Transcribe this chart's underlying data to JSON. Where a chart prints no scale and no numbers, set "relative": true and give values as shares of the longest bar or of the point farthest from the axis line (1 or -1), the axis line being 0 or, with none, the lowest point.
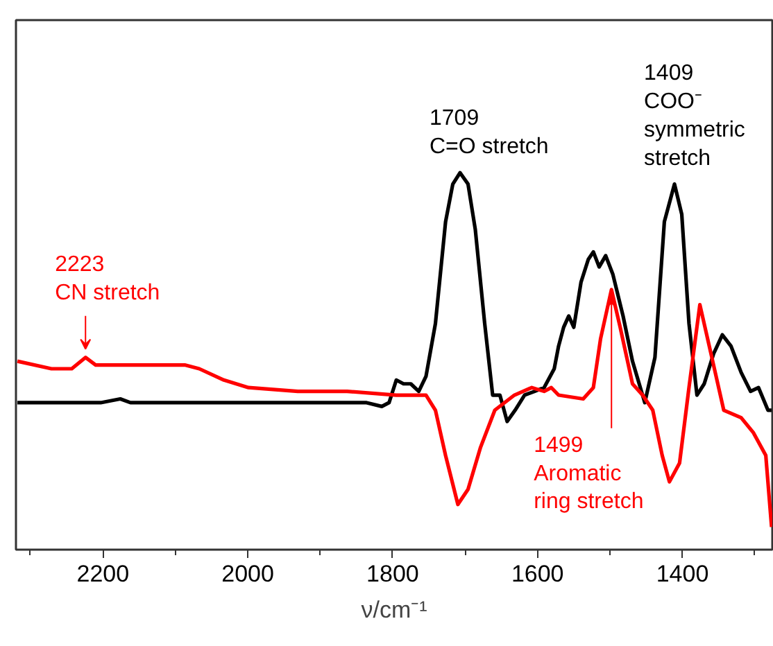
{
  "chart_data": {
    "type": "line",
    "relative": true,
    "xlabel": "ν/cm⁻¹",
    "xlim": [
      2320,
      1276
    ],
    "xticks": [
      {
        "value": 2300,
        "label": null
      },
      2200,
      {
        "value": 2100,
        "label": null
      },
      2000,
      {
        "value": 1900,
        "label": null
      },
      1800,
      {
        "value": 1700,
        "label": null
      },
      1600,
      {
        "value": 1500,
        "label": null
      },
      1400,
      {
        "value": 1300,
        "label": null
      }
    ],
    "series": [
      {
        "color": "#000000",
        "x": [
          2318,
          2203,
          2176,
          2162,
          2135,
          1999,
          1863,
          1836,
          1815,
          1805,
          1795,
          1785,
          1775,
          1764,
          1754,
          1741,
          1727,
          1717,
          1707,
          1696,
          1686,
          1673,
          1662,
          1652,
          1642,
          1631,
          1618,
          1604,
          1591,
          1577,
          1571,
          1564,
          1557,
          1550,
          1540,
          1530,
          1523,
          1515,
          1506,
          1496,
          1482,
          1469,
          1452,
          1438,
          1425,
          1411,
          1401,
          1391,
          1380,
          1370,
          1357,
          1345,
          1333,
          1319,
          1306,
          1295,
          1282,
          1277
        ],
        "values": [
          0.39,
          0.39,
          0.4,
          0.39,
          0.39,
          0.39,
          0.39,
          0.39,
          0.38,
          0.39,
          0.45,
          0.44,
          0.44,
          0.42,
          0.46,
          0.6,
          0.87,
          0.97,
          1.0,
          0.97,
          0.85,
          0.6,
          0.41,
          0.41,
          0.34,
          0.37,
          0.41,
          0.42,
          0.43,
          0.48,
          0.54,
          0.59,
          0.62,
          0.59,
          0.71,
          0.77,
          0.79,
          0.75,
          0.78,
          0.73,
          0.62,
          0.5,
          0.39,
          0.51,
          0.87,
          0.97,
          0.89,
          0.6,
          0.41,
          0.44,
          0.52,
          0.57,
          0.54,
          0.47,
          0.42,
          0.43,
          0.37,
          0.37
        ]
      },
      {
        "color": "#ff0000",
        "x": [
          2318,
          2271,
          2243,
          2224,
          2210,
          2135,
          2087,
          2067,
          2033,
          1999,
          1931,
          1863,
          1795,
          1754,
          1741,
          1727,
          1710,
          1696,
          1679,
          1659,
          1632,
          1608,
          1591,
          1581,
          1571,
          1537,
          1523,
          1513,
          1498,
          1486,
          1469,
          1455,
          1441,
          1428,
          1418,
          1404,
          1391,
          1376,
          1363,
          1343,
          1319,
          1302,
          1285,
          1277
        ],
        "values": [
          0.5,
          0.48,
          0.48,
          0.51,
          0.49,
          0.49,
          0.49,
          0.48,
          0.45,
          0.43,
          0.42,
          0.42,
          0.41,
          0.41,
          0.37,
          0.25,
          0.12,
          0.16,
          0.27,
          0.37,
          0.41,
          0.43,
          0.42,
          0.43,
          0.41,
          0.4,
          0.43,
          0.56,
          0.69,
          0.59,
          0.44,
          0.41,
          0.37,
          0.25,
          0.18,
          0.23,
          0.43,
          0.65,
          0.54,
          0.37,
          0.35,
          0.31,
          0.25,
          0.06
        ]
      }
    ],
    "annotations": [
      {
        "text": "2223\nCN stretch",
        "x": 2224,
        "y": 0.51
      },
      {
        "text": "1709\nC=O stretch",
        "x": 1707,
        "y": 1.0
      },
      {
        "text": "1409\nCOO⁻\nsymmetric\nstretch",
        "x": 1411,
        "y": 0.97
      },
      {
        "text": "1499\nAromatic\nring stretch",
        "x": 1498,
        "y": 0.69
      }
    ]
  }
}
